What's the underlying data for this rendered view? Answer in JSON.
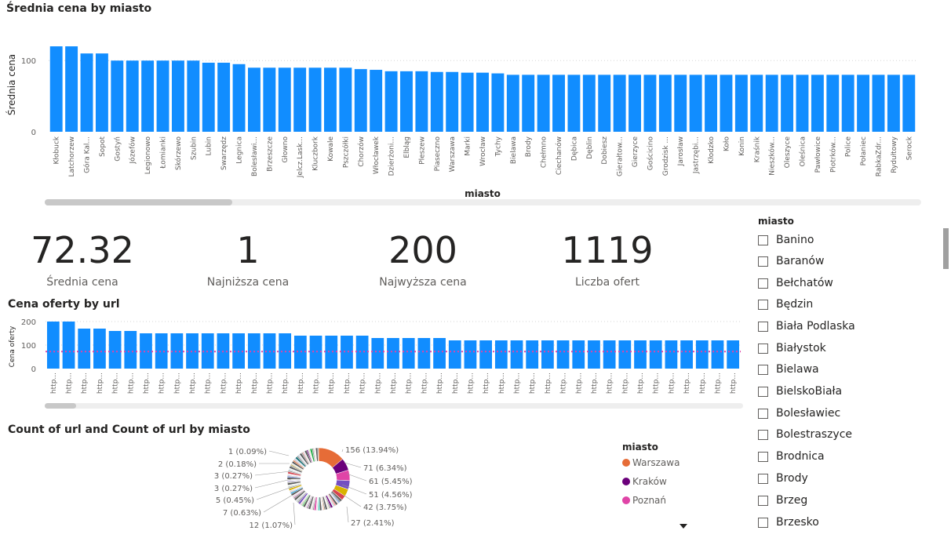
{
  "chart1": {
    "title": "Średnia cena by miasto",
    "ylabel": "Średnia cena",
    "xlabel": "miasto",
    "ticks": [
      "100",
      "0"
    ]
  },
  "chart2": {
    "title": "Cena oferty by url",
    "ylabel": "Cena oferty",
    "ticks": [
      "200",
      "100",
      "0"
    ]
  },
  "chart3": {
    "title": "Count of url and Count of url by miasto",
    "legend_title": "miasto",
    "legend": [
      {
        "name": "Warszawa",
        "color": "#E66C37"
      },
      {
        "name": "Kraków",
        "color": "#6B007B"
      },
      {
        "name": "Poznań",
        "color": "#E044A7"
      }
    ],
    "left_labels": [
      "1 (0.09%)",
      "2 (0.18%)",
      "3 (0.27%)",
      "3 (0.27%)",
      "5 (0.45%)",
      "7 (0.63%)",
      "12 (1.07%)"
    ],
    "right_labels": [
      "156 (13.94%)",
      "71 (6.34%)",
      "61 (5.45%)",
      "51 (4.56%)",
      "42 (3.75%)",
      "27 (2.41%)"
    ]
  },
  "kpis": [
    {
      "value": "72.32",
      "label": "Średnia cena"
    },
    {
      "value": "1",
      "label": "Najniższa cena"
    },
    {
      "value": "200",
      "label": "Najwyższa cena"
    },
    {
      "value": "1119",
      "label": "Liczba ofert"
    }
  ],
  "slicer": {
    "title": "miasto",
    "items": [
      "Banino",
      "Baranów",
      "Bełchatów",
      "Będzin",
      "Biała Podlaska",
      "Białystok",
      "Bielawa",
      "BielskoBiała",
      "Bolesławiec",
      "Bolestraszyce",
      "Brodnica",
      "Brody",
      "Brzeg",
      "Brzesko"
    ]
  },
  "chart_data": [
    {
      "type": "bar",
      "title": "Średnia cena by miasto",
      "xlabel": "miasto",
      "ylabel": "Średnia cena",
      "ylim": [
        0,
        130
      ],
      "grid": true,
      "categories": [
        "Kłobuck",
        "Latchorzew",
        "Góra Kal...",
        "Sopot",
        "Gostyń",
        "Józefów",
        "Legionowo",
        "Łomianki",
        "Skórzewo",
        "Szubin",
        "Lubin",
        "Swarzędz",
        "Legnica",
        "Bolesławi...",
        "Brzeszcze",
        "Głowno",
        "Jelcz.Lask...",
        "Kluczbork",
        "Kowale",
        "Pszczółki",
        "Chorzów",
        "Włocławek",
        "Dzierżoni...",
        "Elbląg",
        "Pleszew",
        "Piaseczno",
        "Warszawa",
        "Marki",
        "Wrocław",
        "Tychy",
        "Bielawa",
        "Brody",
        "Chełmno",
        "Ciechanów",
        "Dębica",
        "Dęblin",
        "Dobiesz",
        "Gierałtow...",
        "Gierzyce",
        "Gościcino",
        "Grodzisk ...",
        "Jarosław",
        "Jastrzębi...",
        "Kłodzko",
        "Koło",
        "Konin",
        "Kraśnik",
        "Nieszków...",
        "Oleszyce",
        "Oleśnica",
        "Pawłowice",
        "Piotrków...",
        "Police",
        "Połaniec",
        "RabkaZdr...",
        "Rydułtowy",
        "Serock"
      ],
      "values": [
        120,
        120,
        110,
        110,
        100,
        100,
        100,
        100,
        100,
        100,
        97,
        97,
        95,
        90,
        90,
        90,
        90,
        90,
        90,
        90,
        88,
        87,
        85,
        85,
        85,
        84,
        84,
        83,
        83,
        82,
        80,
        80,
        80,
        80,
        80,
        80,
        80,
        80,
        80,
        80,
        80,
        80,
        80,
        80,
        80,
        80,
        80,
        80,
        80,
        80,
        80,
        80,
        80,
        80,
        80,
        80,
        80
      ]
    },
    {
      "type": "bar",
      "title": "Cena oferty by url",
      "ylabel": "Cena oferty",
      "ylim": [
        0,
        210
      ],
      "grid": true,
      "reference_line": 72.32,
      "category_label": "http...",
      "values": [
        200,
        200,
        170,
        170,
        160,
        160,
        150,
        150,
        150,
        150,
        150,
        150,
        150,
        150,
        150,
        150,
        140,
        140,
        140,
        140,
        140,
        130,
        130,
        130,
        130,
        130,
        120,
        120,
        120,
        120,
        120,
        120,
        120,
        120,
        120,
        120,
        120,
        120,
        120,
        120,
        120,
        120,
        120,
        120,
        120
      ]
    },
    {
      "type": "pie",
      "title": "Count of url and Count of url by miasto",
      "legend_title": "miasto",
      "slices": [
        {
          "name": "Warszawa",
          "value": 156,
          "percent": 13.94
        },
        {
          "name": "Kraków",
          "value": 71,
          "percent": 6.34
        },
        {
          "name": "Poznań",
          "value": 61,
          "percent": 5.45
        },
        {
          "value": 51,
          "percent": 4.56
        },
        {
          "value": 42,
          "percent": 3.75
        },
        {
          "value": 27,
          "percent": 2.41
        },
        {
          "value": 12,
          "percent": 1.07
        },
        {
          "value": 7,
          "percent": 0.63
        },
        {
          "value": 5,
          "percent": 0.45
        },
        {
          "value": 3,
          "percent": 0.27
        },
        {
          "value": 3,
          "percent": 0.27
        },
        {
          "value": 2,
          "percent": 0.18
        },
        {
          "value": 1,
          "percent": 0.09
        }
      ]
    }
  ]
}
